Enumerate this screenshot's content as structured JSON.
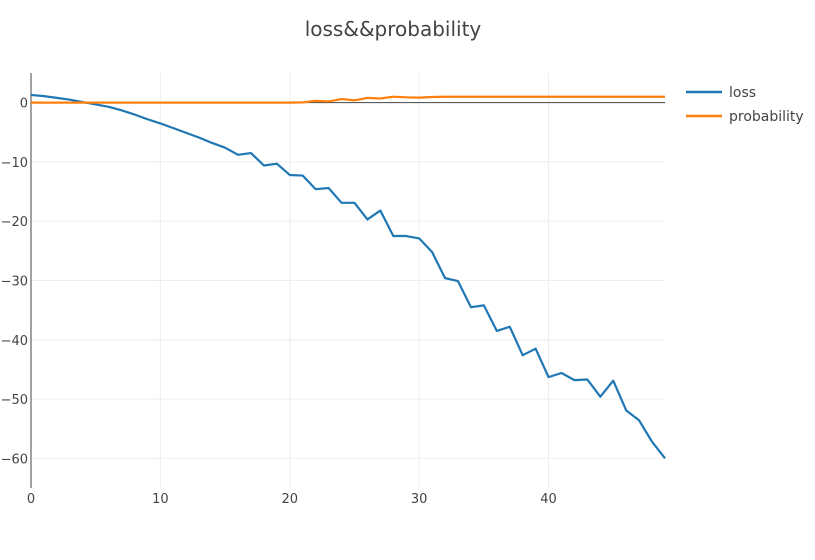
{
  "chart_data": {
    "type": "line",
    "title": "loss&&probability",
    "xlabel": "",
    "ylabel": "",
    "xlim": [
      0,
      49
    ],
    "ylim": [
      -65,
      5
    ],
    "x_ticks": [
      0,
      10,
      20,
      30,
      40
    ],
    "y_ticks": [
      0,
      -10,
      -20,
      -30,
      -40,
      -50,
      -60
    ],
    "grid": true,
    "legend": "top-right",
    "x": [
      0,
      1,
      2,
      3,
      4,
      5,
      6,
      7,
      8,
      9,
      10,
      11,
      12,
      13,
      14,
      15,
      16,
      17,
      18,
      19,
      20,
      21,
      22,
      23,
      24,
      25,
      26,
      27,
      28,
      29,
      30,
      31,
      32,
      33,
      34,
      35,
      36,
      37,
      38,
      39,
      40,
      41,
      42,
      43,
      44,
      45,
      46,
      47,
      48,
      49
    ],
    "series": [
      {
        "name": "loss",
        "color": "#1f77b4",
        "values": [
          1.3,
          1.1,
          0.8,
          0.5,
          0.1,
          -0.3,
          -0.7,
          -1.3,
          -2.0,
          -2.8,
          -3.5,
          -4.3,
          -5.1,
          -5.9,
          -6.8,
          -7.6,
          -8.8,
          -8.5,
          -10.6,
          -10.3,
          -12.2,
          -12.3,
          -14.6,
          -14.4,
          -16.9,
          -16.9,
          -19.7,
          -18.2,
          -22.5,
          -22.5,
          -22.9,
          -25.2,
          -29.6,
          -30.1,
          -34.5,
          -34.2,
          -38.5,
          -37.8,
          -42.6,
          -41.5,
          -46.3,
          -45.6,
          -46.8,
          -46.7,
          -49.6,
          -46.9,
          -51.9,
          -53.6,
          -57.2,
          -60.0
        ]
      },
      {
        "name": "probability",
        "color": "#ff7f0e",
        "values": [
          0,
          0,
          0,
          0,
          0,
          0,
          0,
          0,
          0,
          0,
          0,
          0,
          0,
          0,
          0,
          0,
          0,
          0,
          0,
          0,
          0,
          0.05,
          0.3,
          0.2,
          0.6,
          0.4,
          0.8,
          0.7,
          1.0,
          0.9,
          0.85,
          0.95,
          1.0,
          1.0,
          1.0,
          1.0,
          1.0,
          1.0,
          1.0,
          1.0,
          1.0,
          1.0,
          1.0,
          1.0,
          1.0,
          1.0,
          1.0,
          1.0,
          1.0,
          1.0
        ]
      }
    ]
  }
}
